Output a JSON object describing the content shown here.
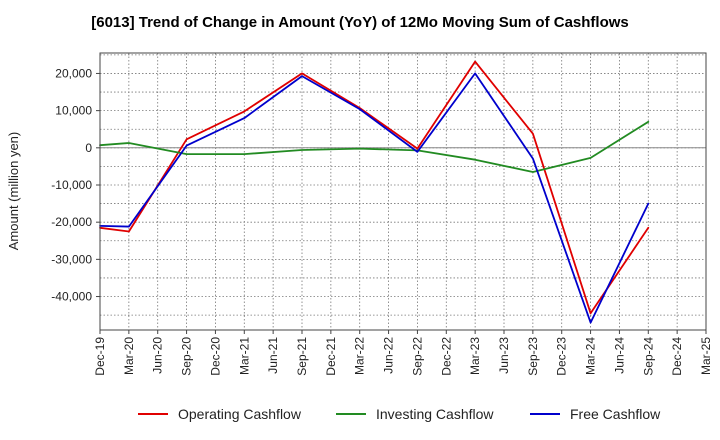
{
  "chart_data": {
    "type": "line",
    "title": "[6013]  Trend of Change in Amount (YoY) of 12Mo Moving Sum of Cashflows",
    "xlabel": "",
    "ylabel": "Amount (million yen)",
    "ylim": [
      -49000,
      25500
    ],
    "yticks": [
      20000,
      10000,
      0,
      -10000,
      -20000,
      -30000,
      -40000
    ],
    "ytick_labels": [
      "20,000",
      "10,000",
      "0",
      "-10,000",
      "-20,000",
      "-30,000",
      "-40,000"
    ],
    "categories": [
      "Dec-19",
      "Mar-20",
      "Jun-20",
      "Sep-20",
      "Dec-20",
      "Mar-21",
      "Jun-21",
      "Sep-21",
      "Dec-21",
      "Mar-22",
      "Jun-22",
      "Sep-22",
      "Dec-22",
      "Mar-23",
      "Jun-23",
      "Sep-23",
      "Dec-23",
      "Mar-24",
      "Jun-24",
      "Sep-24",
      "Dec-24",
      "Mar-25"
    ],
    "grid": true,
    "legend_position": "bottom",
    "series": [
      {
        "name": "Operating Cashflow",
        "color": "#e00000",
        "values": [
          -21500,
          -22500,
          null,
          2300,
          null,
          9800,
          null,
          20000,
          null,
          10700,
          null,
          -200,
          null,
          23200,
          null,
          3800,
          null,
          -44500,
          null,
          -21500,
          null,
          null
        ]
      },
      {
        "name": "Investing Cashflow",
        "color": "#228B22",
        "values": [
          700,
          1300,
          null,
          -1700,
          null,
          -1700,
          null,
          -600,
          null,
          -200,
          null,
          -700,
          null,
          -3200,
          null,
          -6500,
          null,
          -2700,
          null,
          7000,
          null,
          null
        ]
      },
      {
        "name": "Free Cashflow",
        "color": "#0000cc",
        "values": [
          -21000,
          -21200,
          null,
          600,
          null,
          8000,
          null,
          19300,
          null,
          10400,
          null,
          -1100,
          null,
          20000,
          null,
          -2900,
          null,
          -47000,
          null,
          -15000,
          null,
          null
        ]
      }
    ]
  }
}
